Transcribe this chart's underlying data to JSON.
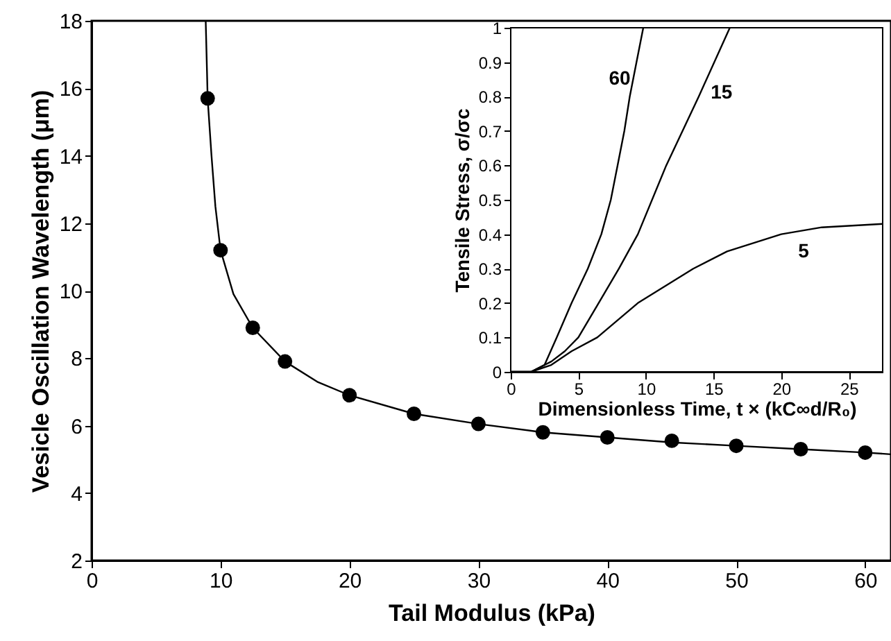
{
  "chart_data": [
    {
      "type": "line",
      "xlabel": "Tail Modulus (kPa)",
      "ylabel": "Vesicle Oscillation Wavelength (μm)",
      "xlim": [
        0,
        62
      ],
      "ylim": [
        2,
        18
      ],
      "xticks": [
        0,
        10,
        20,
        30,
        40,
        50,
        60
      ],
      "yticks": [
        2,
        4,
        6,
        8,
        10,
        12,
        14,
        16,
        18
      ],
      "series": [
        {
          "type": "line",
          "color": "#000000",
          "marker": "none",
          "x": [
            8.85,
            8.95,
            9,
            9.3,
            9.6,
            10,
            11,
            12.5,
            15,
            17.5,
            20,
            25,
            30,
            35,
            40,
            45,
            50,
            55,
            60,
            62
          ],
          "values": [
            18,
            16.5,
            15.7,
            14,
            12.5,
            11.2,
            9.9,
            8.9,
            7.9,
            7.3,
            6.9,
            6.35,
            6.05,
            5.8,
            5.65,
            5.5,
            5.4,
            5.3,
            5.2,
            5.15
          ]
        },
        {
          "type": "scatter",
          "color": "#000000",
          "marker": "circle",
          "x": [
            9,
            10,
            12.5,
            15,
            20,
            25,
            30,
            35,
            40,
            45,
            50,
            55,
            60
          ],
          "values": [
            15.7,
            11.2,
            8.9,
            7.9,
            6.9,
            6.35,
            6.05,
            5.8,
            5.65,
            5.55,
            5.4,
            5.3,
            5.2
          ]
        }
      ]
    },
    {
      "type": "line",
      "xlabel": "Dimensionless Time, t × (kC∞d/R₀)",
      "ylabel": "Tensile Stress, σ/σc",
      "xlim": [
        0,
        27.5
      ],
      "ylim": [
        0,
        1
      ],
      "xticks": [
        0,
        5,
        10,
        15,
        20,
        25
      ],
      "yticks": [
        0,
        0.1,
        0.2,
        0.3,
        0.4,
        0.5,
        0.6,
        0.7,
        0.8,
        0.9,
        1
      ],
      "series": [
        {
          "name": "60",
          "color": "#000000",
          "x": [
            0,
            1.5,
            2.5,
            3.4,
            4.5,
            5.7,
            6.7,
            7.4,
            7.9,
            8.4,
            8.8,
            9.3,
            9.8
          ],
          "values": [
            0,
            0,
            0.02,
            0.1,
            0.2,
            0.3,
            0.4,
            0.5,
            0.6,
            0.7,
            0.8,
            0.9,
            1
          ]
        },
        {
          "name": "15",
          "color": "#000000",
          "x": [
            0,
            1.5,
            2,
            3,
            4,
            5,
            6.5,
            8,
            9.4,
            11.5,
            13.9,
            16.2
          ],
          "values": [
            0,
            0,
            0.01,
            0.03,
            0.06,
            0.1,
            0.2,
            0.3,
            0.4,
            0.6,
            0.8,
            1
          ]
        },
        {
          "name": "5",
          "color": "#000000",
          "x": [
            0,
            1.5,
            3,
            4.5,
            6.4,
            9.4,
            13.5,
            16,
            20,
            23,
            27.5
          ],
          "values": [
            0,
            0,
            0.02,
            0.06,
            0.1,
            0.2,
            0.3,
            0.35,
            0.4,
            0.42,
            0.43
          ]
        }
      ]
    }
  ]
}
